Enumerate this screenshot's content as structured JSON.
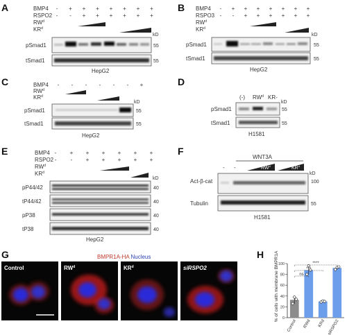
{
  "panels": {
    "A": {
      "letter": "A",
      "treatments": [
        "BMP4",
        "RSPO2",
        "RW",
        "KR"
      ],
      "superscript": "d",
      "signs": [
        [
          "-",
          "+",
          "+",
          "+",
          "+",
          "+",
          "+",
          "+"
        ],
        [
          "-",
          "-",
          "+",
          "+",
          "+",
          "+",
          "+",
          "+"
        ]
      ],
      "kd": "kD",
      "blots": [
        {
          "label": "pSmad1",
          "mw": "55"
        },
        {
          "label": "tSmad1",
          "mw": "55"
        }
      ],
      "cell_line": "HepG2"
    },
    "B": {
      "letter": "B",
      "treatments": [
        "BMP4",
        "RSPO3",
        "RW",
        "KR"
      ],
      "superscript": "d",
      "signs": [
        [
          "-",
          "+",
          "+",
          "+",
          "+",
          "+",
          "+",
          "+"
        ],
        [
          "-",
          "-",
          "+",
          "+",
          "+",
          "+",
          "+",
          "+"
        ]
      ],
      "kd": "kD",
      "blots": [
        {
          "label": "pSmad1",
          "mw": "55"
        },
        {
          "label": "tSmad1",
          "mw": "55"
        }
      ],
      "cell_line": "HepG2"
    },
    "C": {
      "letter": "C",
      "treatments": [
        "BMP4",
        "RW",
        "KR"
      ],
      "superscript": "d",
      "signs": [
        [
          "-",
          "-",
          "-",
          "-",
          "-",
          "-",
          "+"
        ]
      ],
      "kd": "kD",
      "blots": [
        {
          "label": "pSmad1",
          "mw": "55"
        },
        {
          "label": "tSmad1",
          "mw": "55"
        }
      ],
      "cell_line": "HepG2"
    },
    "D": {
      "letter": "D",
      "lanes": [
        "(-)",
        "RW",
        "KR-"
      ],
      "superscript": "d",
      "kd": "kD",
      "blots": [
        {
          "label": "pSmad1",
          "mw": "55"
        },
        {
          "label": "tSmad1",
          "mw": "55"
        }
      ],
      "cell_line": "H1581"
    },
    "E": {
      "letter": "E",
      "treatments": [
        "BMP4",
        "RSPO2",
        "RW",
        "KR"
      ],
      "superscript": "d",
      "signs": [
        [
          "-",
          "+",
          "+",
          "+",
          "+",
          "+",
          "+"
        ],
        [
          "-",
          "-",
          "+",
          "+",
          "+",
          "+",
          "+"
        ]
      ],
      "kd": "kD",
      "blots": [
        {
          "label": "pP44/42",
          "mw": "40"
        },
        {
          "label": "tP44/42",
          "mw": "40"
        },
        {
          "label": "pP38",
          "mw": "40"
        },
        {
          "label": "tP38",
          "mw": "40"
        }
      ],
      "cell_line": "HepG2"
    },
    "F": {
      "letter": "F",
      "group": "WNT3A",
      "ramps": [
        "RW",
        "KR"
      ],
      "superscript": "d",
      "kd": "kD",
      "blots": [
        {
          "label": "Act-β-cat",
          "mw": "100"
        },
        {
          "label": "Tubulin",
          "mw": "55"
        }
      ],
      "cell_line": "H1581"
    },
    "G": {
      "letter": "G",
      "stain_red": "BMPR1A-HA",
      "stain_blue": "Nucleus",
      "images": [
        {
          "label": "Control",
          "sup": ""
        },
        {
          "label": "RW",
          "sup": "d"
        },
        {
          "label": "KR",
          "sup": "d"
        },
        {
          "label": "siRSPO2",
          "sup": ""
        }
      ]
    },
    "H": {
      "letter": "H",
      "chart_data": {
        "type": "bar",
        "categories": [
          "Control",
          "RWd",
          "KRd",
          "siRSPO2"
        ],
        "values": [
          33,
          88,
          30,
          92
        ],
        "points": [
          [
            26,
            38,
            34
          ],
          [
            80,
            96,
            88
          ],
          [
            29,
            31,
            30
          ],
          [
            89,
            93,
            94
          ]
        ],
        "ylabel": "% of cells with membrane BMPR1A",
        "ylim": [
          0,
          100
        ],
        "yticks": [
          0,
          20,
          40,
          60,
          80,
          100
        ],
        "significance": [
          "ns",
          "***",
          "****"
        ],
        "colors": {
          "control": "#8c8c8c",
          "treated": "#6d9eeb"
        }
      }
    }
  }
}
